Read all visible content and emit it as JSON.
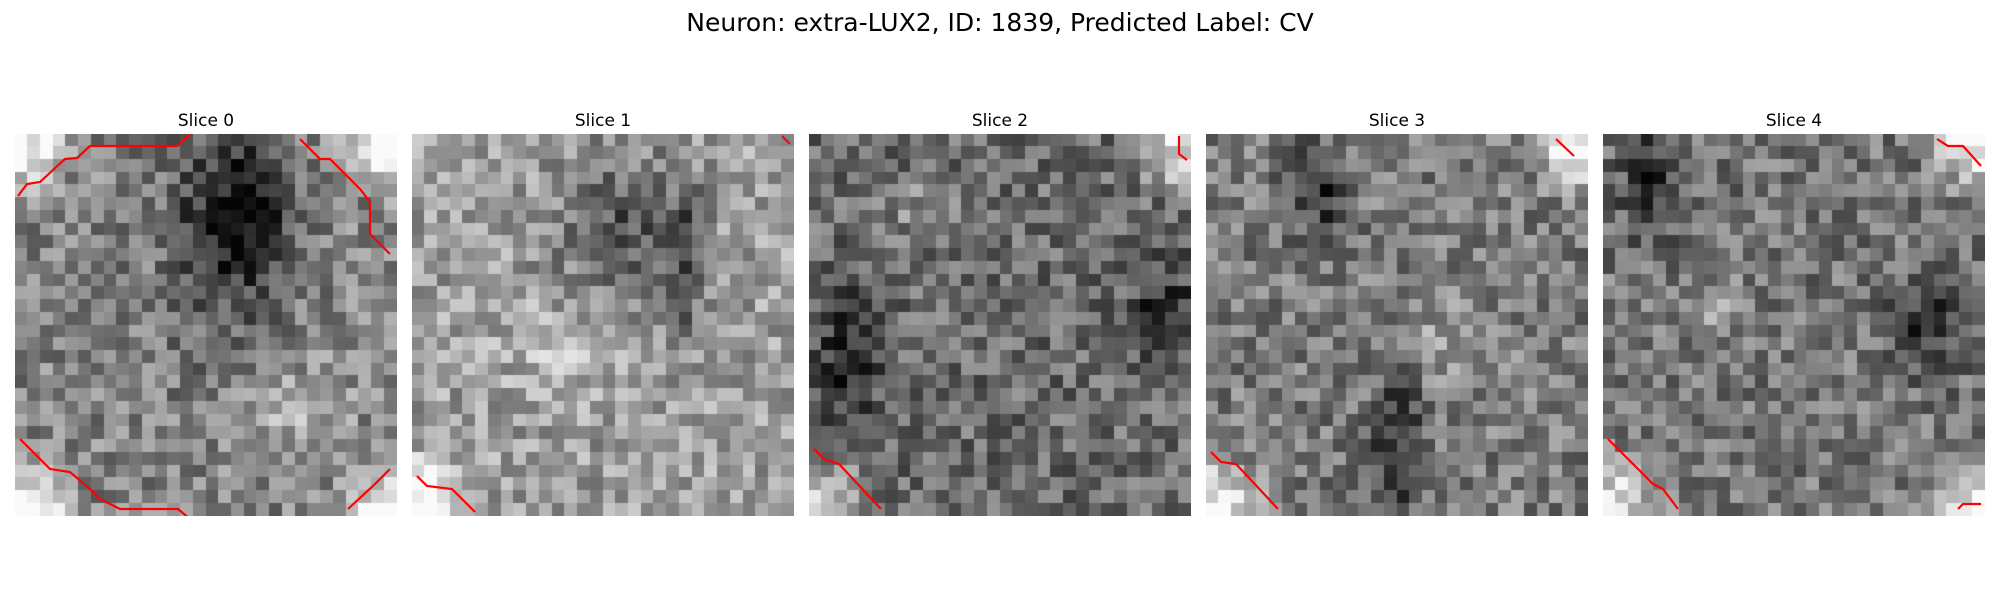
{
  "title": "Neuron: extra-LUX2, ID: 1839, Predicted Label: CV",
  "contour_color": "#ff0000",
  "slices": [
    {
      "label": "Slice 0",
      "base": 0.52,
      "corner_bright": [
        "tl",
        "tr",
        "bl",
        "br"
      ],
      "dark_spots": [
        [
          0.55,
          0.25,
          0.16,
          0.3
        ],
        [
          0.62,
          0.2,
          0.1,
          0.15
        ]
      ],
      "light_spots": [
        [
          0.72,
          0.72,
          0.15,
          0.12
        ]
      ]
    },
    {
      "label": "Slice 1",
      "base": 0.62,
      "corner_bright": [
        "bl"
      ],
      "dark_spots": [
        [
          0.55,
          0.27,
          0.15,
          0.22
        ],
        [
          0.72,
          0.33,
          0.06,
          0.2
        ]
      ],
      "light_spots": [
        [
          0.45,
          0.55,
          0.2,
          0.1
        ]
      ]
    },
    {
      "label": "Slice 2",
      "base": 0.42,
      "corner_bright": [
        "tr",
        "bl"
      ],
      "dark_spots": [
        [
          0.1,
          0.58,
          0.08,
          0.18
        ],
        [
          0.93,
          0.47,
          0.08,
          0.12
        ]
      ],
      "light_spots": [
        [
          0.3,
          0.2,
          0.12,
          0.08
        ]
      ]
    },
    {
      "label": "Slice 3",
      "base": 0.48,
      "corner_bright": [
        "tr",
        "bl"
      ],
      "dark_spots": [
        [
          0.5,
          0.8,
          0.07,
          0.2
        ],
        [
          0.3,
          0.15,
          0.08,
          0.12
        ]
      ],
      "light_spots": [
        [
          0.6,
          0.55,
          0.15,
          0.1
        ]
      ]
    },
    {
      "label": "Slice 4",
      "base": 0.46,
      "corner_bright": [
        "tr",
        "bl",
        "br"
      ],
      "dark_spots": [
        [
          0.12,
          0.12,
          0.07,
          0.15
        ],
        [
          0.85,
          0.5,
          0.1,
          0.12
        ]
      ],
      "light_spots": [
        [
          0.3,
          0.45,
          0.1,
          0.08
        ]
      ]
    }
  ]
}
